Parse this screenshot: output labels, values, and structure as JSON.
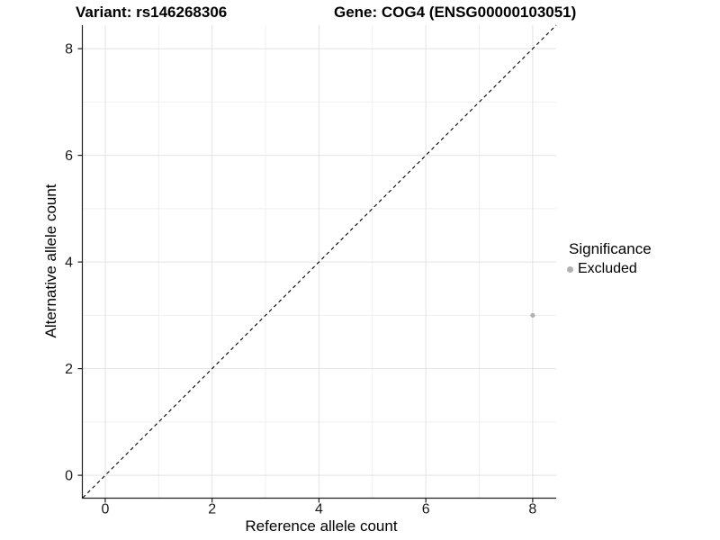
{
  "chart_data": {
    "type": "scatter",
    "title_left": "Variant: rs146268306",
    "title_right": "Gene: COG4 (ENSG00000103051)",
    "xlabel": "Reference allele count",
    "ylabel": "Alternative allele count",
    "x_ticks": [
      0,
      2,
      4,
      6,
      8
    ],
    "y_ticks": [
      0,
      2,
      4,
      6,
      8
    ],
    "xlim": [
      -0.42,
      8.44
    ],
    "ylim": [
      -0.42,
      8.44
    ],
    "grid": "major+minor",
    "legend": {
      "title": "Significance",
      "position": "right",
      "items": [
        {
          "label": "Excluded",
          "color": "#b1b1b1"
        }
      ]
    },
    "identity_line": {
      "equation": "y = x",
      "style": "dashed",
      "color": "#000000"
    },
    "series": [
      {
        "name": "Excluded",
        "color": "#b1b1b1",
        "points": [
          {
            "x": 8,
            "y": 3
          }
        ]
      }
    ],
    "colors": {
      "background": "#ffffff",
      "grid_major": "#e3e3e3",
      "grid_minor": "#efefef",
      "axis": "#1f1f1f",
      "text": "#000000"
    }
  }
}
